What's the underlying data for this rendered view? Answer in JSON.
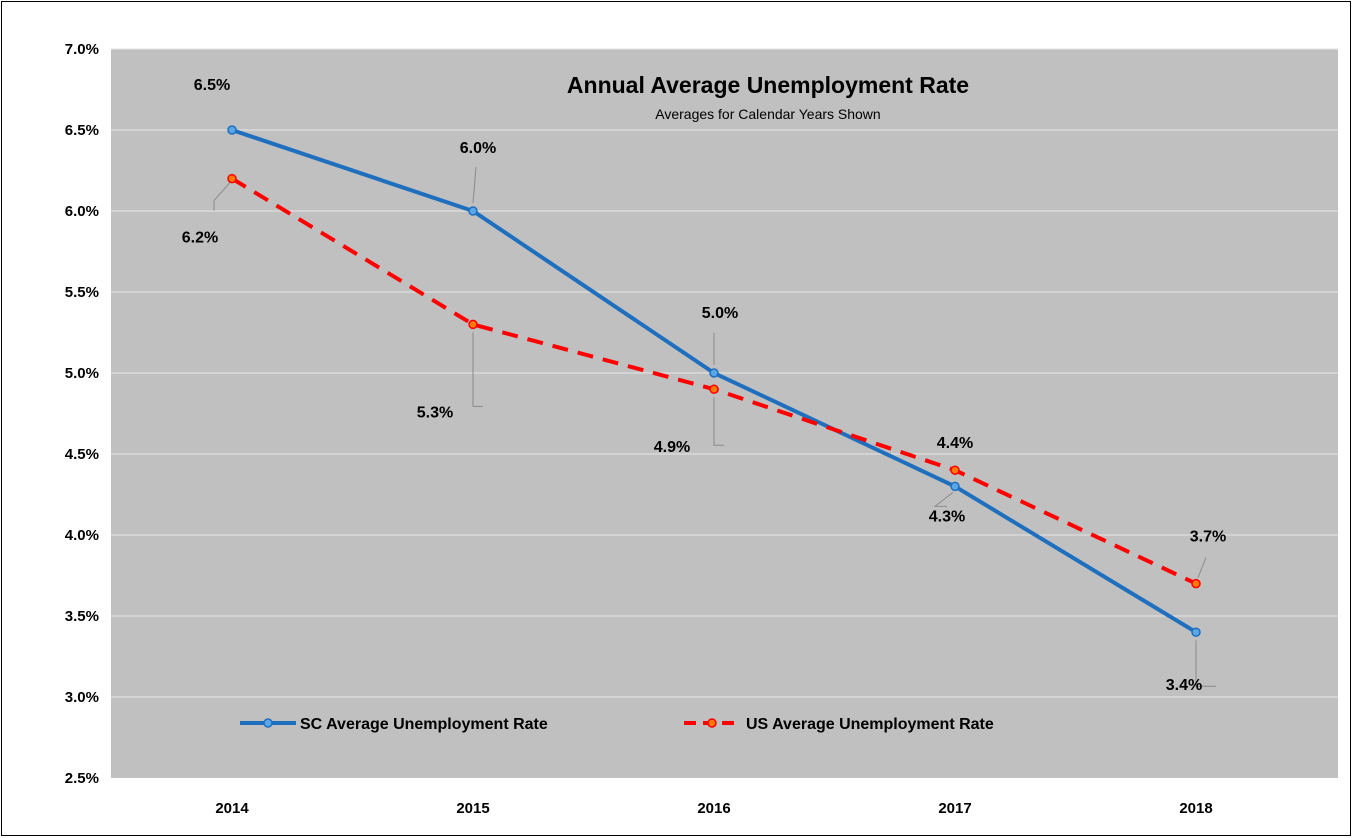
{
  "chart_data": {
    "type": "line",
    "title": "Annual Average Unemployment Rate",
    "subtitle": "Averages for Calendar Years Shown",
    "xlabel": "",
    "ylabel": "",
    "categories": [
      "2014",
      "2015",
      "2016",
      "2017",
      "2018"
    ],
    "ylim": [
      2.5,
      7.0
    ],
    "ytick_step": 0.5,
    "y_tick_labels": [
      "2.5%",
      "3.0%",
      "3.5%",
      "4.0%",
      "4.5%",
      "5.0%",
      "5.5%",
      "6.0%",
      "6.5%",
      "7.0%"
    ],
    "grid": true,
    "legend_position": "bottom-inside",
    "series": [
      {
        "name": "SC Average Unemployment Rate",
        "values": [
          6.5,
          6.0,
          5.0,
          4.3,
          3.4
        ],
        "labels": [
          "6.5%",
          "6.0%",
          "5.0%",
          "4.3%",
          "3.4%"
        ],
        "color": "#1f6fbf",
        "style": "solid"
      },
      {
        "name": "US Average Unemployment Rate",
        "values": [
          6.2,
          5.3,
          4.9,
          4.4,
          3.7
        ],
        "labels": [
          "6.2%",
          "5.3%",
          "4.9%",
          "4.4%",
          "3.7%"
        ],
        "color": "#ff0000",
        "style": "dashed"
      }
    ],
    "plot_background": "#c0c0c0",
    "gridline_color": "#e6e6e6"
  }
}
